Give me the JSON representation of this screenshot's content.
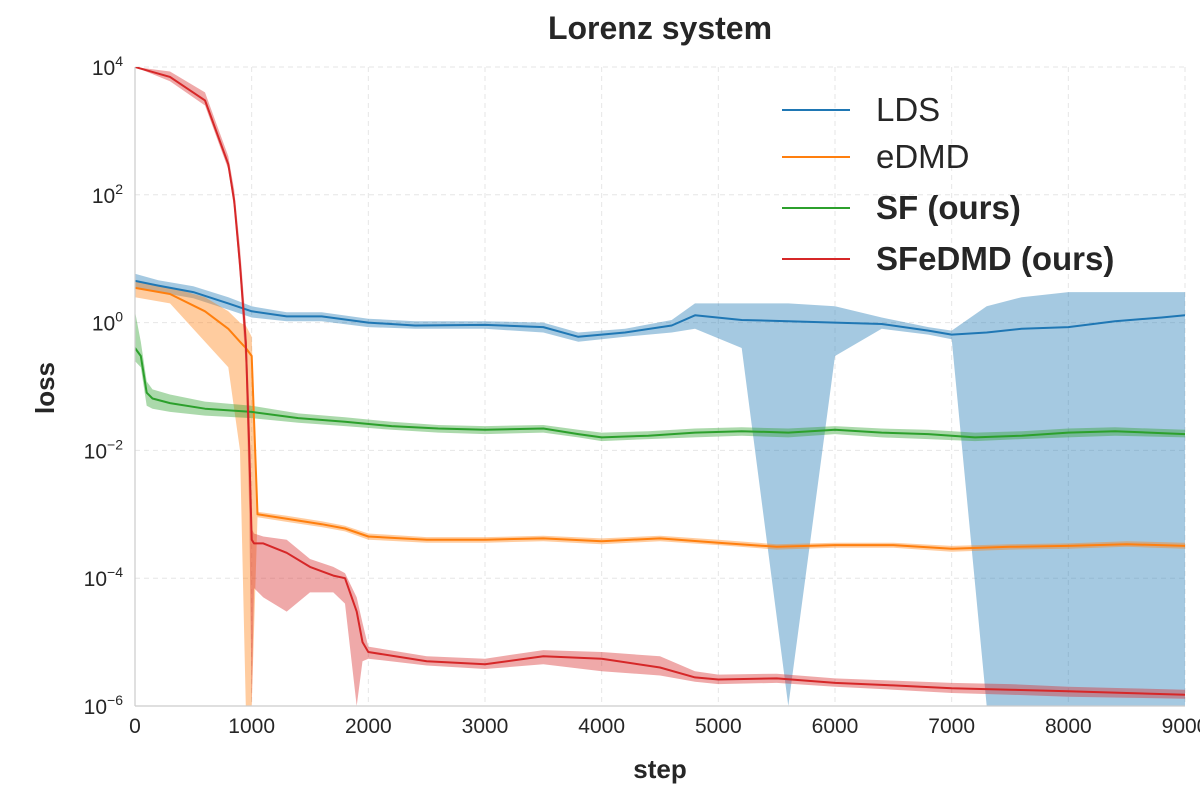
{
  "chart_data": {
    "type": "line",
    "title": "Lorenz system",
    "xlabel": "step",
    "ylabel": "loss",
    "xscale": "linear",
    "yscale": "log",
    "xlim": [
      0,
      9000
    ],
    "ylim": [
      1e-06,
      10000
    ],
    "grid": true,
    "legend_position": "top-right",
    "x_ticks": [
      {
        "value": 0,
        "label": "0"
      },
      {
        "value": 1000,
        "label": "1000"
      },
      {
        "value": 2000,
        "label": "2000"
      },
      {
        "value": 3000,
        "label": "3000"
      },
      {
        "value": 4000,
        "label": "4000"
      },
      {
        "value": 5000,
        "label": "5000"
      },
      {
        "value": 6000,
        "label": "6000"
      },
      {
        "value": 7000,
        "label": "7000"
      },
      {
        "value": 8000,
        "label": "8000"
      },
      {
        "value": 9000,
        "label": "9000"
      }
    ],
    "y_ticks": [
      {
        "value": 10000,
        "base": "10",
        "exp": "4"
      },
      {
        "value": 100,
        "base": "10",
        "exp": "2"
      },
      {
        "value": 1,
        "base": "10",
        "exp": "0"
      },
      {
        "value": 0.01,
        "base": "10",
        "exp": "−2"
      },
      {
        "value": 0.0001,
        "base": "10",
        "exp": "−4"
      },
      {
        "value": 1e-06,
        "base": "10",
        "exp": "−6"
      }
    ],
    "series": [
      {
        "name": "LDS",
        "bold": false,
        "color": "#1f77b4",
        "band_color": "#1f77b4",
        "band_opacity": 0.4,
        "x": [
          0,
          200,
          500,
          800,
          1000,
          1300,
          1600,
          2000,
          2400,
          3000,
          3500,
          3800,
          4200,
          4600,
          4800,
          5200,
          5600,
          6000,
          6400,
          6800,
          7000,
          7300,
          7600,
          8000,
          8400,
          8800,
          9000
        ],
        "mean": [
          4.5,
          3.8,
          3.0,
          2.0,
          1.5,
          1.25,
          1.25,
          1.0,
          0.9,
          0.92,
          0.85,
          0.6,
          0.7,
          0.9,
          1.3,
          1.1,
          1.05,
          1.0,
          0.95,
          0.75,
          0.65,
          0.7,
          0.8,
          0.85,
          1.05,
          1.2,
          1.3
        ],
        "lower": [
          3.5,
          3.0,
          2.4,
          1.6,
          1.2,
          1.05,
          1.05,
          0.85,
          0.8,
          0.8,
          0.7,
          0.5,
          0.6,
          0.7,
          0.8,
          0.4,
          1e-06,
          0.3,
          0.8,
          0.65,
          0.55,
          1e-06,
          1e-06,
          1e-06,
          1e-06,
          1e-06,
          1e-06
        ],
        "upper": [
          5.8,
          4.6,
          3.7,
          2.5,
          1.8,
          1.45,
          1.45,
          1.15,
          1.05,
          1.05,
          1.0,
          0.7,
          0.8,
          1.1,
          2.0,
          2.0,
          2.0,
          1.8,
          1.2,
          0.85,
          0.75,
          1.8,
          2.5,
          3.0,
          3.0,
          3.0,
          3.0
        ]
      },
      {
        "name": "eDMD",
        "bold": false,
        "color": "#ff7f0e",
        "band_color": "#ff7f0e",
        "band_opacity": 0.4,
        "x": [
          0,
          300,
          600,
          800,
          900,
          950,
          1000,
          1050,
          1300,
          1600,
          1800,
          2000,
          2500,
          3000,
          3500,
          4000,
          4500,
          5000,
          5500,
          6000,
          6500,
          7000,
          7500,
          8000,
          8500,
          9000
        ],
        "mean": [
          3.5,
          2.8,
          1.5,
          0.8,
          0.5,
          0.4,
          0.3,
          0.001,
          0.00085,
          0.0007,
          0.0006,
          0.00045,
          0.0004,
          0.0004,
          0.00042,
          0.00038,
          0.00042,
          0.00036,
          0.00031,
          0.00033,
          0.00033,
          0.00029,
          0.00031,
          0.00032,
          0.00034,
          0.00032
        ],
        "lower": [
          2.5,
          2.0,
          0.5,
          0.2,
          0.01,
          1e-06,
          1e-06,
          0.0009,
          0.00076,
          0.00063,
          0.00054,
          0.0004,
          0.00036,
          0.00036,
          0.00038,
          0.00034,
          0.00038,
          0.00033,
          0.00028,
          0.0003,
          0.0003,
          0.00026,
          0.00028,
          0.00029,
          0.00031,
          0.00029
        ],
        "upper": [
          4.5,
          3.6,
          2.5,
          1.5,
          1.0,
          0.9,
          0.6,
          0.0011,
          0.00095,
          0.00078,
          0.00066,
          0.0005,
          0.00044,
          0.00044,
          0.00046,
          0.00042,
          0.00046,
          0.0004,
          0.00034,
          0.00036,
          0.00036,
          0.00032,
          0.00034,
          0.00035,
          0.00038,
          0.00036
        ]
      },
      {
        "name": "SF (ours)",
        "bold": true,
        "color": "#2ca02c",
        "band_color": "#2ca02c",
        "band_opacity": 0.4,
        "x": [
          0,
          50,
          100,
          150,
          300,
          600,
          1000,
          1400,
          1800,
          2200,
          2600,
          3000,
          3500,
          3800,
          4000,
          4400,
          4800,
          5200,
          5600,
          6000,
          6400,
          6800,
          7200,
          7600,
          8000,
          8400,
          9000
        ],
        "mean": [
          0.4,
          0.3,
          0.08,
          0.065,
          0.055,
          0.045,
          0.04,
          0.032,
          0.028,
          0.024,
          0.022,
          0.021,
          0.022,
          0.018,
          0.016,
          0.017,
          0.019,
          0.02,
          0.019,
          0.021,
          0.019,
          0.018,
          0.016,
          0.017,
          0.019,
          0.02,
          0.018
        ],
        "lower": [
          0.25,
          0.2,
          0.05,
          0.045,
          0.04,
          0.035,
          0.032,
          0.027,
          0.024,
          0.021,
          0.019,
          0.018,
          0.019,
          0.016,
          0.014,
          0.015,
          0.016,
          0.017,
          0.016,
          0.018,
          0.016,
          0.015,
          0.014,
          0.015,
          0.016,
          0.017,
          0.016
        ],
        "upper": [
          1.5,
          0.5,
          0.12,
          0.09,
          0.075,
          0.058,
          0.05,
          0.038,
          0.033,
          0.028,
          0.025,
          0.024,
          0.025,
          0.021,
          0.019,
          0.02,
          0.022,
          0.023,
          0.022,
          0.024,
          0.022,
          0.021,
          0.019,
          0.02,
          0.022,
          0.023,
          0.021
        ]
      },
      {
        "name": "SFeDMD (ours)",
        "bold": true,
        "color": "#d62728",
        "band_color": "#d62728",
        "band_opacity": 0.4,
        "x": [
          0,
          300,
          600,
          800,
          850,
          900,
          950,
          980,
          1000,
          1020,
          1100,
          1300,
          1500,
          1700,
          1800,
          1900,
          1950,
          2000,
          2500,
          3000,
          3500,
          4000,
          4500,
          4800,
          5000,
          5500,
          6000,
          6500,
          7000,
          7500,
          8000,
          8500,
          9000
        ],
        "mean": [
          10000,
          7000,
          3000,
          300,
          80,
          8,
          0.5,
          0.01,
          0.0004,
          0.00035,
          0.00035,
          0.00025,
          0.00015,
          0.00011,
          0.0001,
          3e-05,
          1e-05,
          7e-06,
          5e-06,
          4.5e-06,
          6e-06,
          5.5e-06,
          4e-06,
          2.8e-06,
          2.6e-06,
          2.7e-06,
          2.3e-06,
          2.1e-06,
          1.9e-06,
          1.8e-06,
          1.7e-06,
          1.6e-06,
          1.5e-06
        ],
        "lower": [
          10000,
          6000,
          2500,
          250,
          60,
          5,
          0.2,
          0.001,
          1e-06,
          7e-05,
          5e-05,
          3e-05,
          6e-05,
          6e-05,
          4e-05,
          1e-06,
          5e-06,
          5.5e-06,
          4.3e-06,
          3.8e-06,
          4.5e-06,
          3.5e-06,
          3e-06,
          2.4e-06,
          2.2e-06,
          2.3e-06,
          2e-06,
          1.8e-06,
          1.6e-06,
          1.5e-06,
          1.4e-06,
          1.35e-06,
          1.3e-06
        ],
        "upper": [
          10000,
          8500,
          4000,
          400,
          120,
          15,
          1.0,
          0.05,
          0.0006,
          0.0005,
          0.00045,
          0.0004,
          0.0002,
          0.00015,
          0.00012,
          5e-05,
          2e-05,
          8.5e-06,
          6e-06,
          5.5e-06,
          7.5e-06,
          7e-06,
          6e-06,
          3.5e-06,
          3.1e-06,
          3.2e-06,
          2.7e-06,
          2.5e-06,
          2.3e-06,
          2.2e-06,
          2e-06,
          1.9e-06,
          1.8e-06
        ]
      }
    ]
  }
}
